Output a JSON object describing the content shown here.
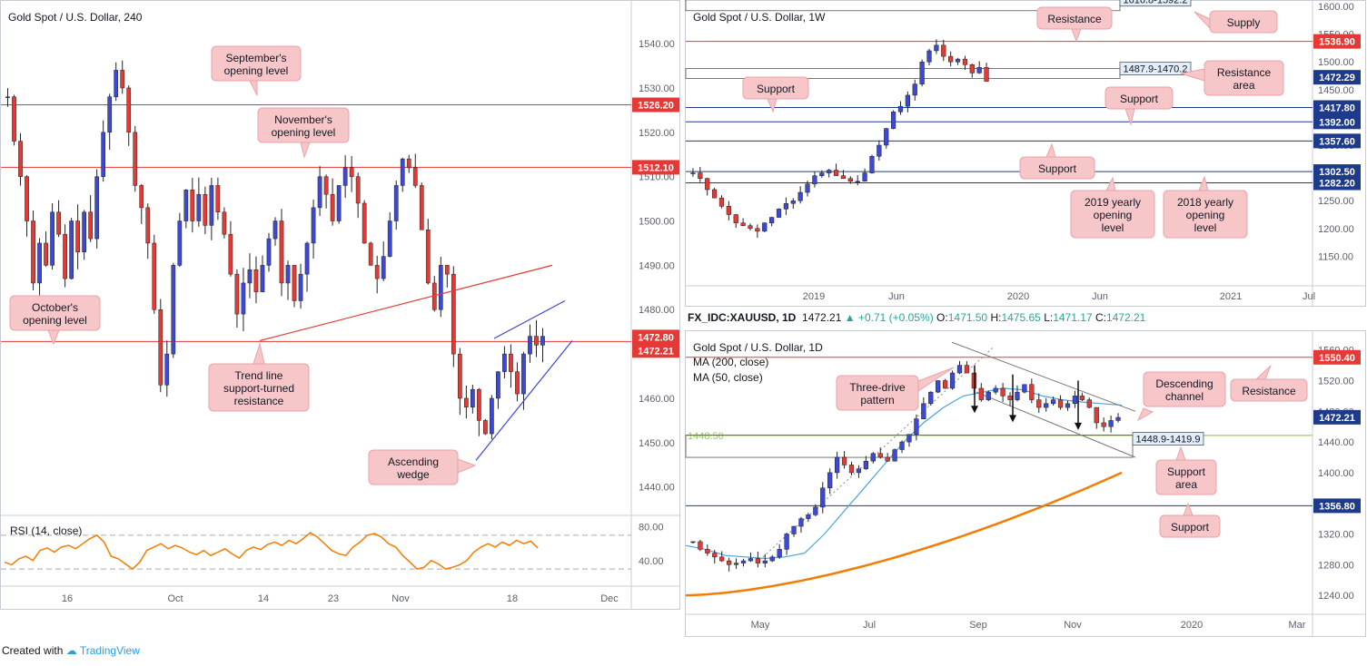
{
  "footer": {
    "created_with": "Created with",
    "brand": "TradingView"
  },
  "chart_data": [
    {
      "id": "h4",
      "type": "candlestick",
      "title": "Gold Spot / U.S. Dollar, 240",
      "ylim": [
        1434,
        1548
      ],
      "y_ticks": [
        1440,
        1450,
        1460,
        1470,
        1480,
        1490,
        1500,
        1510,
        1520,
        1530,
        1540
      ],
      "x_ticks": [
        "16",
        "Oct",
        "14",
        "23",
        "Nov",
        "18",
        "Dec"
      ],
      "price_labels": [
        {
          "value": 1526.2,
          "label": "1526.20",
          "color": "#e53935"
        },
        {
          "value": 1512.1,
          "label": "1512.10",
          "color": "#e53935"
        },
        {
          "value": 1472.8,
          "label": "1472.80",
          "color": "#e53935"
        },
        {
          "value": 1472.21,
          "label": "1472.21",
          "color": "#e53935"
        }
      ],
      "levels": [
        1526.2,
        1512.1,
        1472.8
      ],
      "trend_line": [
        [
          1473,
          1490
        ]
      ],
      "wedge": {
        "upper": [
          1473.5,
          1482
        ],
        "lower": [
          1446,
          1473
        ]
      },
      "annotations": [
        {
          "text": "September's opening level"
        },
        {
          "text": "November's opening level"
        },
        {
          "text": "October's opening level"
        },
        {
          "text": "Trend line support-turned resistance"
        },
        {
          "text": "Ascending wedge"
        }
      ],
      "close_path": [
        1528,
        1518,
        1510,
        1500,
        1486,
        1495,
        1490,
        1502,
        1497,
        1487,
        1500,
        1493,
        1502,
        1496,
        1510,
        1520,
        1528,
        1534,
        1530,
        1520,
        1508,
        1503,
        1495,
        1480,
        1463,
        1470,
        1490,
        1500,
        1507,
        1500,
        1506,
        1499,
        1508,
        1502,
        1497,
        1488,
        1479,
        1486,
        1489,
        1484,
        1490,
        1496,
        1500,
        1486,
        1490,
        1482,
        1488,
        1495,
        1503,
        1510,
        1506,
        1500,
        1508,
        1512,
        1510,
        1504,
        1495,
        1490,
        1487,
        1492,
        1500,
        1508,
        1514,
        1512,
        1508,
        1498,
        1486,
        1480,
        1490,
        1488,
        1470,
        1460,
        1458,
        1462,
        1455,
        1452,
        1460,
        1466,
        1470,
        1466,
        1461,
        1470,
        1474,
        1472,
        1474
      ]
    },
    {
      "id": "rsi",
      "type": "line",
      "title": "RSI (14, close)",
      "ylim": [
        15,
        85
      ],
      "y_ticks": [
        40.0,
        80.0
      ],
      "bands": [
        70,
        30
      ],
      "values": [
        38,
        35,
        42,
        45,
        40,
        52,
        55,
        50,
        56,
        58,
        54,
        60,
        66,
        70,
        62,
        45,
        42,
        36,
        30,
        38,
        52,
        56,
        60,
        54,
        58,
        55,
        50,
        47,
        52,
        46,
        50,
        54,
        48,
        43,
        52,
        56,
        53,
        59,
        62,
        58,
        64,
        60,
        66,
        73,
        68,
        60,
        52,
        48,
        46,
        56,
        62,
        70,
        72,
        68,
        60,
        56,
        46,
        38,
        30,
        32,
        40,
        36,
        30,
        32,
        35,
        40,
        50,
        56,
        60,
        56,
        62,
        58,
        64,
        60,
        63,
        55
      ]
    },
    {
      "id": "w1",
      "type": "candlestick",
      "title": "Gold Spot / U.S. Dollar, 1W",
      "ylim": [
        1100,
        1600
      ],
      "y_ticks": [
        1150,
        1200,
        1250,
        1300,
        1350,
        1400,
        1450,
        1500,
        1550,
        1600
      ],
      "x_ticks": [
        "2019",
        "Jun",
        "2020",
        "Jun",
        "2021",
        "Jul"
      ],
      "price_labels": [
        {
          "value": 1536.9,
          "label": "1536.90",
          "color": "#e53935"
        },
        {
          "value": 1472.29,
          "label": "1472.29",
          "color": "#1e3a8a"
        },
        {
          "value": 1417.8,
          "label": "1417.80",
          "color": "#1e3a8a"
        },
        {
          "value": 1392.0,
          "label": "1392.00",
          "color": "#1e3a8a"
        },
        {
          "value": 1357.6,
          "label": "1357.60",
          "color": "#1e3a8a"
        },
        {
          "value": 1302.5,
          "label": "1302.50",
          "color": "#1e3a8a"
        },
        {
          "value": 1282.2,
          "label": "1282.20",
          "color": "#1e3a8a"
        }
      ],
      "zones": [
        {
          "label": "1616.8-1592.2",
          "from": 1592.2,
          "to": 1616.8
        },
        {
          "label": "1487.9-1470.2",
          "from": 1470.2,
          "to": 1487.9
        }
      ],
      "annotations": [
        {
          "text": "Resistance"
        },
        {
          "text": "Supply"
        },
        {
          "text": "Resistance area"
        },
        {
          "text": "Support"
        },
        {
          "text": "Support"
        },
        {
          "text": "Support"
        },
        {
          "text": "2019 yearly opening level"
        },
        {
          "text": "2018 yearly opening level"
        }
      ],
      "close_path": [
        1300,
        1290,
        1270,
        1255,
        1240,
        1225,
        1210,
        1205,
        1200,
        1195,
        1210,
        1220,
        1235,
        1245,
        1250,
        1265,
        1280,
        1295,
        1300,
        1305,
        1295,
        1290,
        1285,
        1285,
        1300,
        1330,
        1350,
        1380,
        1410,
        1420,
        1440,
        1460,
        1500,
        1520,
        1530,
        1510,
        1500,
        1505,
        1495,
        1480,
        1490,
        1465
      ]
    },
    {
      "id": "d1",
      "type": "candlestick",
      "title": "Gold Spot / U.S. Dollar, 1D",
      "header": {
        "symbol": "FX_IDC:XAUUSD, 1D",
        "last": "1472.21",
        "change": "▲ +0.71 (+0.05%)",
        "o": "1471.50",
        "h": "1475.65",
        "l": "1471.17",
        "c": "1472.21",
        "o_label": "O:",
        "h_label": "H:",
        "l_label": "L:",
        "c_label": "C:"
      },
      "ylim": [
        1220,
        1575
      ],
      "y_ticks": [
        1240,
        1280,
        1320,
        1360,
        1400,
        1440,
        1480,
        1520,
        1560
      ],
      "x_ticks": [
        "May",
        "Jul",
        "Sep",
        "Nov",
        "2020",
        "Mar"
      ],
      "legend": [
        "MA (200, close)",
        "MA (50, close)"
      ],
      "price_labels": [
        {
          "value": 1550.4,
          "label": "1550.40",
          "color": "#e53935"
        },
        {
          "value": 1472.21,
          "label": "1472.21",
          "color": "#1e3a8a"
        },
        {
          "value": 1356.8,
          "label": "1356.80",
          "color": "#1e3a8a"
        }
      ],
      "fib_level": {
        "value": 1448.5,
        "label": "1448.50"
      },
      "zones": [
        {
          "label": "1448.9-1419.9",
          "from": 1419.9,
          "to": 1448.9
        }
      ],
      "annotations": [
        {
          "text": "Three-drive pattern"
        },
        {
          "text": "Descending channel"
        },
        {
          "text": "Resistance"
        },
        {
          "text": "Support area"
        },
        {
          "text": "Support"
        }
      ],
      "close_path": [
        1310,
        1300,
        1295,
        1290,
        1285,
        1280,
        1282,
        1285,
        1288,
        1282,
        1285,
        1290,
        1300,
        1320,
        1330,
        1340,
        1345,
        1355,
        1380,
        1400,
        1420,
        1410,
        1400,
        1405,
        1415,
        1425,
        1420,
        1415,
        1430,
        1440,
        1450,
        1470,
        1490,
        1505,
        1520,
        1510,
        1530,
        1540,
        1530,
        1510,
        1495,
        1505,
        1510,
        1500,
        1495,
        1505,
        1515,
        1495,
        1485,
        1490,
        1495,
        1485,
        1490,
        1500,
        1495,
        1485,
        1465,
        1460,
        1468,
        1472
      ]
    }
  ]
}
